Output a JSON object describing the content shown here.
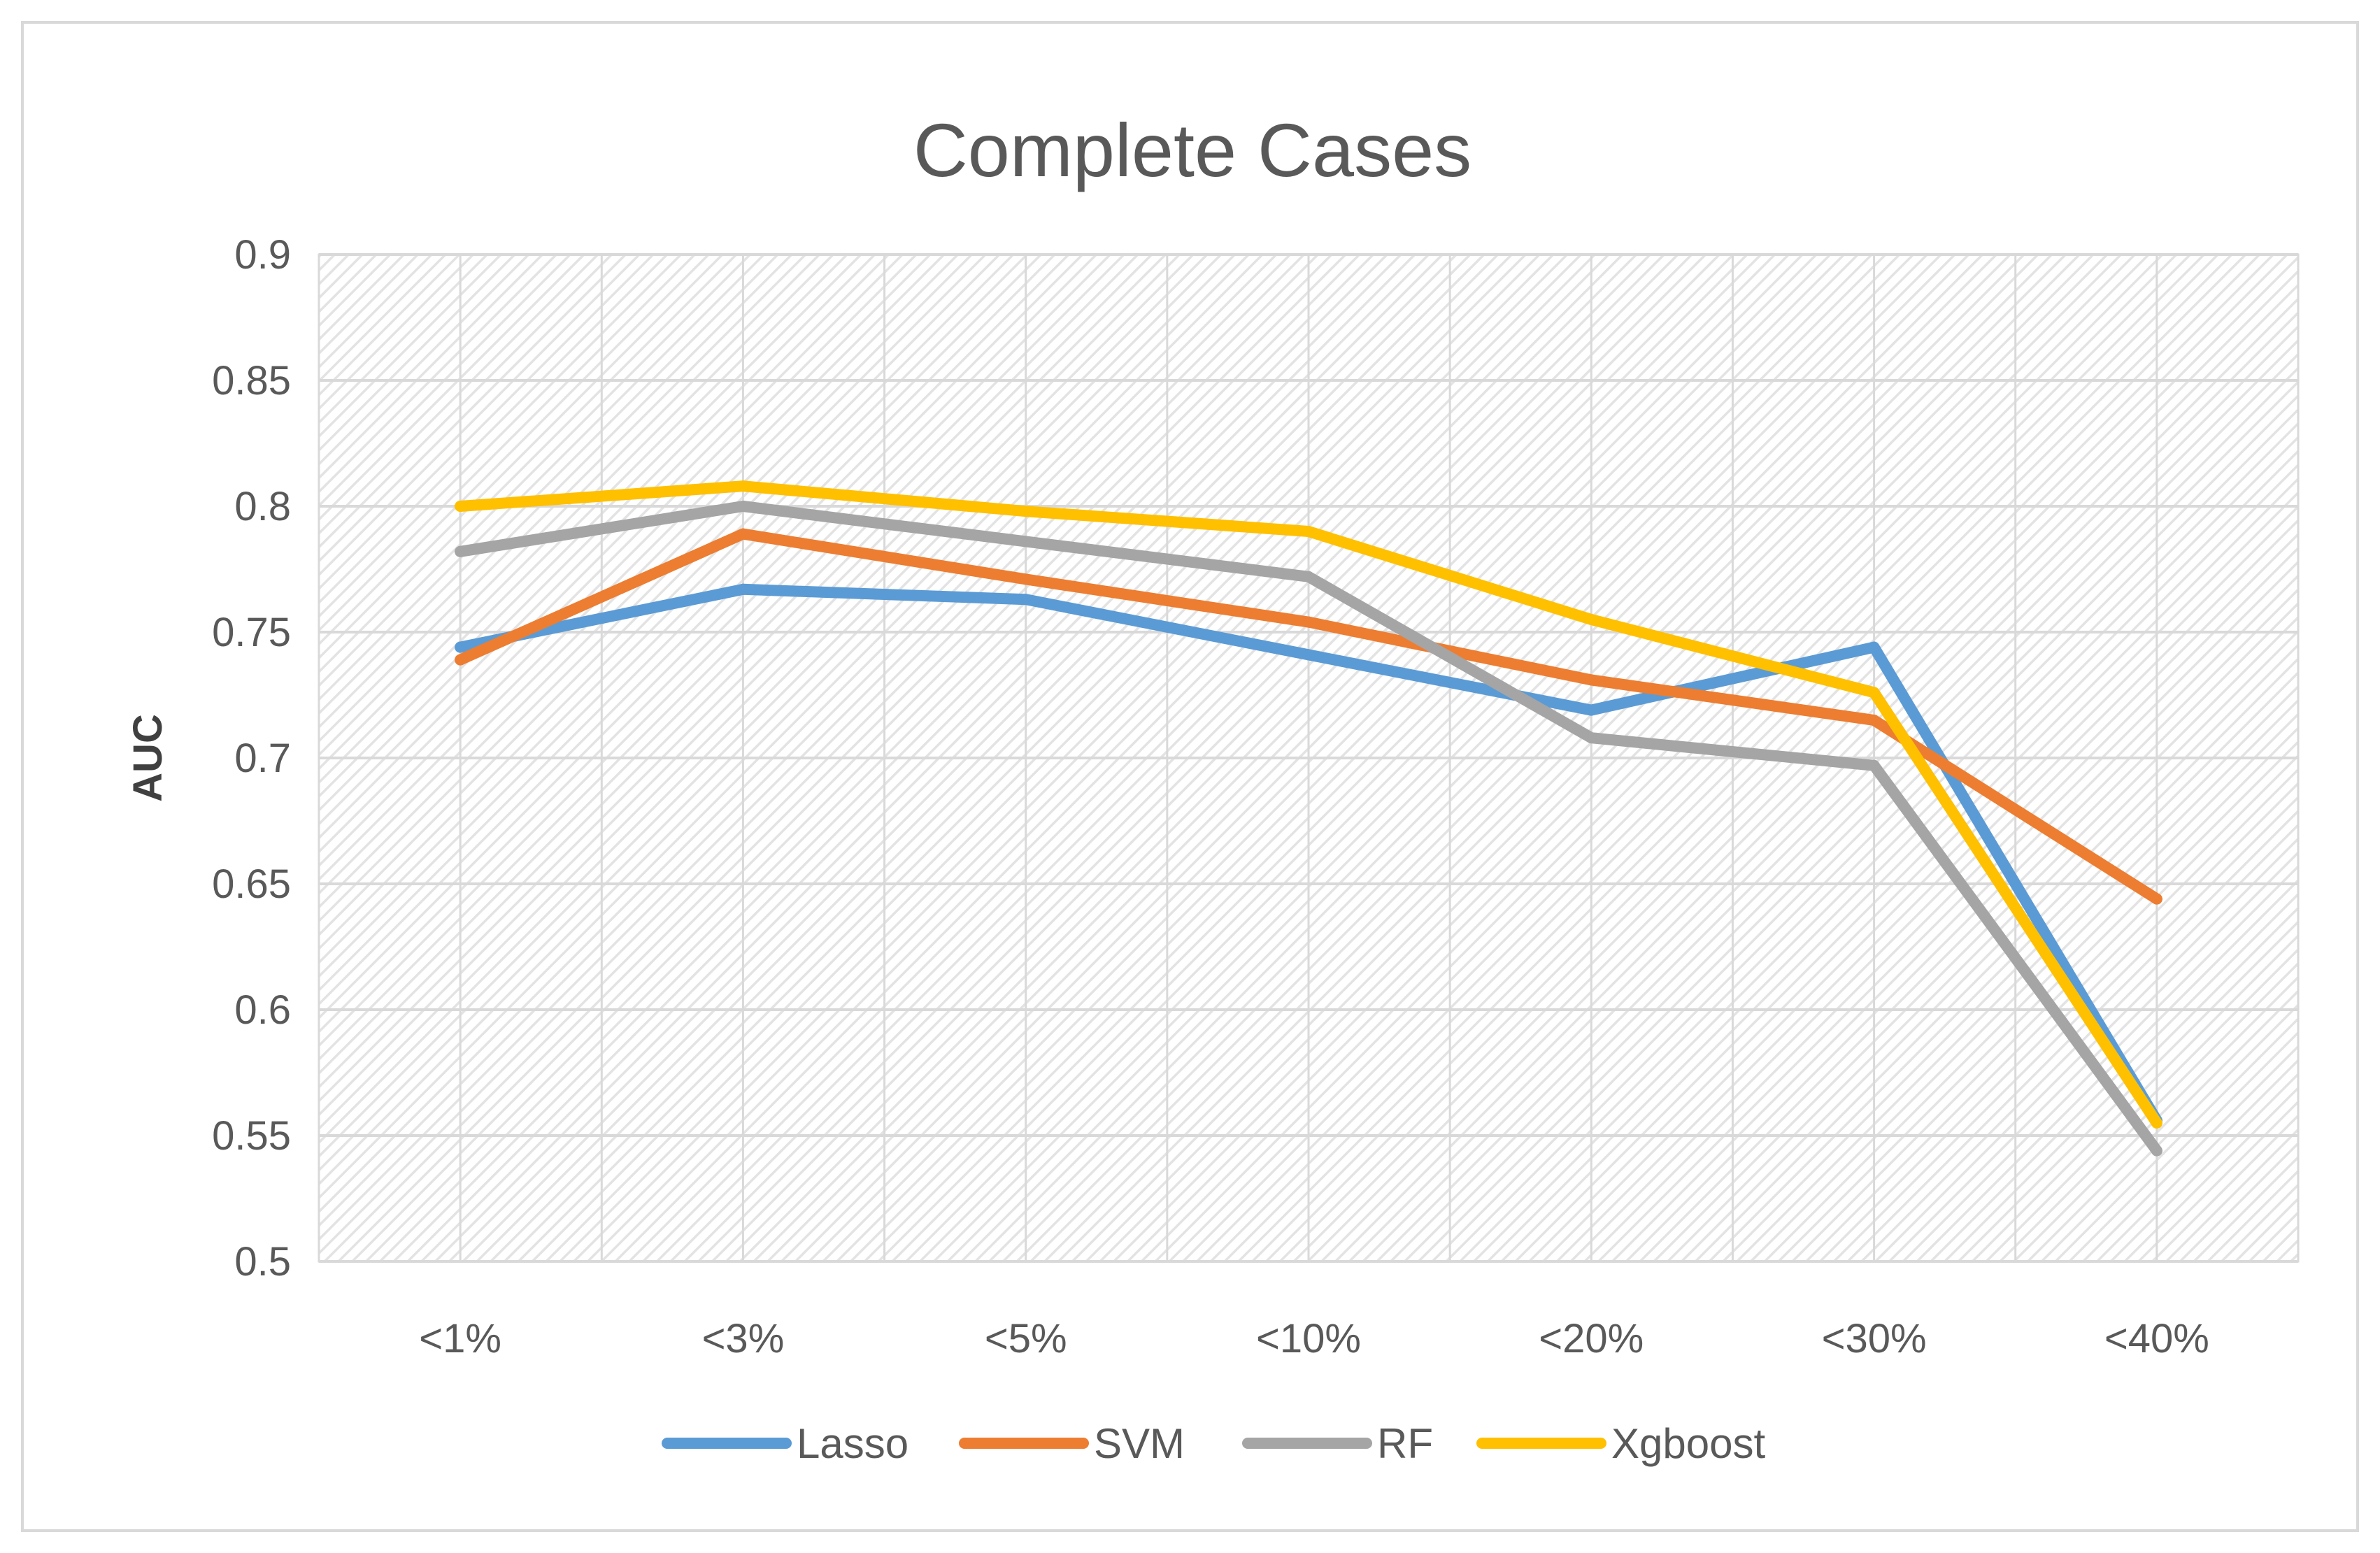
{
  "chart_data": {
    "type": "line",
    "title": "Complete Cases",
    "xlabel": "",
    "ylabel": "AUC",
    "categories": [
      "<1%",
      "<3%",
      "<5%",
      "<10%",
      "<20%",
      "<30%",
      "<40%"
    ],
    "ylim": [
      0.5,
      0.9
    ],
    "yticks": [
      0.5,
      0.55,
      0.6,
      0.65,
      0.7,
      0.75,
      0.8,
      0.85,
      0.9
    ],
    "ytick_labels": [
      "0.5",
      "0.55",
      "0.6",
      "0.65",
      "0.7",
      "0.75",
      "0.8",
      "0.85",
      "0.9"
    ],
    "grid": true,
    "legend_position": "bottom",
    "series": [
      {
        "name": "Lasso",
        "color": "#5b9bd5",
        "values": [
          0.744,
          0.767,
          0.763,
          0.741,
          0.719,
          0.744,
          0.556
        ]
      },
      {
        "name": "SVM",
        "color": "#ed7d31",
        "values": [
          0.739,
          0.789,
          0.771,
          0.754,
          0.731,
          0.715,
          0.644
        ]
      },
      {
        "name": "RF",
        "color": "#a5a5a5",
        "values": [
          0.782,
          0.8,
          0.786,
          0.772,
          0.708,
          0.697,
          0.544
        ]
      },
      {
        "name": "Xgboost",
        "color": "#ffc000",
        "values": [
          0.8,
          0.808,
          0.798,
          0.79,
          0.755,
          0.726,
          0.555
        ]
      }
    ]
  }
}
